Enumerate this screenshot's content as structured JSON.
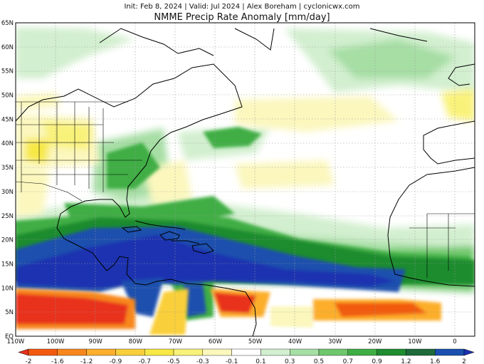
{
  "header": {
    "subtitle": "Init: Feb 8, 2024 | Valid: Jul 2024 | Alex Boreham | cyclonicwx.com",
    "title": "NMME Precip Rate Anomaly [mm/day]"
  },
  "map": {
    "lon_range": [
      -110,
      5
    ],
    "lat_range": [
      0,
      65
    ],
    "lat_labels": [
      "65N",
      "60N",
      "55N",
      "50N",
      "45N",
      "40N",
      "35N",
      "30N",
      "25N",
      "20N",
      "15N",
      "10N",
      "5N",
      "EQ"
    ],
    "lon_labels": [
      "110W",
      "100W",
      "90W",
      "80W",
      "70W",
      "60W",
      "50W",
      "40W",
      "30W",
      "20W",
      "10W",
      "0"
    ]
  },
  "colorbar": {
    "levels": [
      "-2",
      "-1.6",
      "-1.2",
      "-0.9",
      "-0.7",
      "-0.5",
      "-0.3",
      "-0.1",
      "0.1",
      "0.3",
      "0.5",
      "0.7",
      "0.9",
      "1.2",
      "1.6",
      "2"
    ],
    "colors": [
      "#e8311a",
      "#f25a10",
      "#f7871c",
      "#fcae2c",
      "#f9cf3b",
      "#f7e845",
      "#f9f27a",
      "#fbf7bd",
      "#ffffff",
      "#d2efcf",
      "#a6dea4",
      "#6fc76c",
      "#3fae45",
      "#1f8c2f",
      "#1e6a3a",
      "#1a4fae",
      "#1a32b0"
    ]
  }
}
